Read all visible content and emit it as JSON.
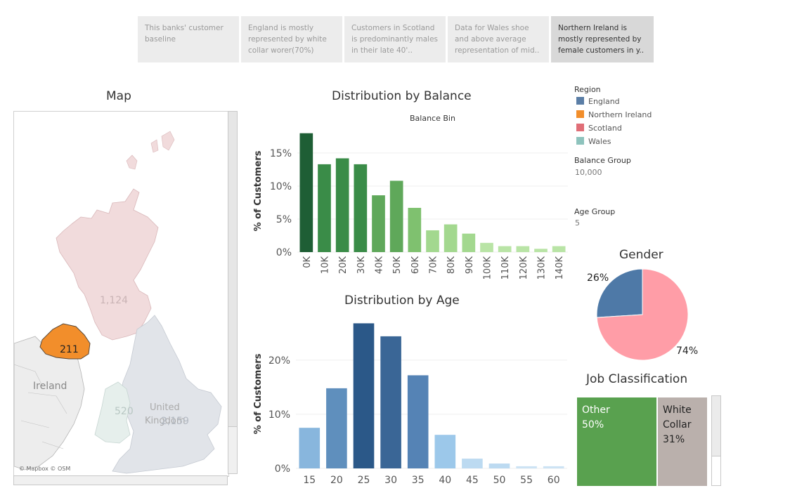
{
  "story_points": [
    {
      "label": "This banks' customer baseline",
      "active": false
    },
    {
      "label": "England is mostly represented by white collar worer(70%)",
      "active": false
    },
    {
      "label": "Customers in Scotland is predominantly males in their late 40'..",
      "active": false
    },
    {
      "label": "Data for Wales shoe and above average representation of mid..",
      "active": false
    },
    {
      "label": "Northern Ireland is mostly represented by female customers in y..",
      "active": true
    }
  ],
  "map": {
    "title": "Map",
    "attribution": "© Mapbox © OSM",
    "labels": {
      "scotland_count": "1,124",
      "ni_count": "211",
      "ireland": "Ireland",
      "wales_count": "520",
      "united_kingdom_1": "United",
      "united_kingdom_2": "Kingdom",
      "england_count": "2,159"
    }
  },
  "legend": {
    "region_title": "Region",
    "regions": [
      {
        "name": "England",
        "color": "#5b7ea6"
      },
      {
        "name": "Northern Ireland",
        "color": "#f28e2b"
      },
      {
        "name": "Scotland",
        "color": "#e06e77"
      },
      {
        "name": "Wales",
        "color": "#8ec3bd"
      }
    ],
    "balance_group_title": "Balance Group",
    "balance_group_value": "10,000",
    "age_group_title": "Age Group",
    "age_group_value": "5"
  },
  "gender": {
    "title": "Gender",
    "label_small": "26%",
    "label_large": "74%"
  },
  "job": {
    "title": "Job Classification",
    "other_label": "Other",
    "other_pct": "50%",
    "white_label_1": "White",
    "white_label_2": "Collar",
    "white_pct": "31%"
  },
  "chart_data": [
    {
      "type": "bar",
      "title": "Distribution by Balance",
      "subtitle": "Balance Bin",
      "ylabel": "% of Customers",
      "categories": [
        "0K",
        "10K",
        "20K",
        "30K",
        "40K",
        "50K",
        "60K",
        "70K",
        "80K",
        "90K",
        "100K",
        "110K",
        "120K",
        "130K",
        "140K"
      ],
      "values": [
        18.0,
        13.3,
        14.2,
        13.3,
        8.6,
        10.8,
        6.7,
        3.3,
        4.2,
        2.8,
        1.4,
        0.9,
        0.9,
        0.5,
        0.9
      ],
      "ylim": [
        0,
        18.5
      ],
      "yticks": [
        "0%",
        "5%",
        "10%",
        "15%"
      ],
      "colors": [
        "#1e5e35",
        "#3a8c48",
        "#3a8c48",
        "#3a8c48",
        "#5fa85a",
        "#5fa85a",
        "#7fc16f",
        "#a3d88f",
        "#a3d88f",
        "#a3d88f",
        "#b9e4a6",
        "#b9e4a6",
        "#b9e4a6",
        "#b9e4a6",
        "#b9e4a6"
      ]
    },
    {
      "type": "bar",
      "title": "Distribution by Age",
      "ylabel": "% of Customers",
      "categories": [
        "15",
        "20",
        "25",
        "30",
        "35",
        "40",
        "45",
        "50",
        "55",
        "60"
      ],
      "values": [
        7.5,
        14.8,
        26.8,
        24.4,
        17.2,
        6.2,
        1.8,
        0.9,
        0.4,
        0.4
      ],
      "ylim": [
        0,
        27.5
      ],
      "yticks": [
        "0%",
        "10%",
        "20%"
      ],
      "colors": [
        "#88b6dd",
        "#5f8fbd",
        "#2b5888",
        "#3a6696",
        "#5583b5",
        "#9cc8ea",
        "#bcdaf1",
        "#bcdaf1",
        "#cde3f4",
        "#cde3f4"
      ]
    },
    {
      "type": "pie",
      "title": "Gender",
      "slices": [
        {
          "label": "26%",
          "value": 26,
          "color": "#4e79a7"
        },
        {
          "label": "74%",
          "value": 74,
          "color": "#ff9da7"
        }
      ]
    }
  ]
}
